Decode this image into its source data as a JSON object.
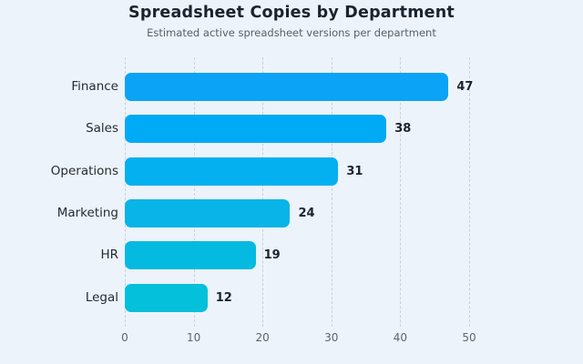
{
  "title": "Spreadsheet Copies by Department",
  "subtitle": "Estimated active spreadsheet versions per department",
  "colors": {
    "background": "#edf3fb",
    "grid": "#cad1dc",
    "title": "#1c232e",
    "subtitle": "#54616f",
    "category_label": "#262b33",
    "value_label": "#1d232c",
    "tick_label": "#5b6471"
  },
  "chart_data": {
    "type": "bar",
    "orientation": "horizontal",
    "title": "Spreadsheet Copies by Department",
    "subtitle": "Estimated active spreadsheet versions per department",
    "categories": [
      "Finance",
      "Sales",
      "Operations",
      "Marketing",
      "HR",
      "Legal"
    ],
    "values": [
      47,
      38,
      31,
      24,
      19,
      12
    ],
    "bar_colors": [
      "#0aa3f6",
      "#00aaf5",
      "#04b0ef",
      "#08b4e8",
      "#05bae1",
      "#04c0da"
    ],
    "xlabel": "",
    "ylabel": "",
    "x_ticks": [
      0,
      10,
      20,
      30,
      40,
      50
    ],
    "xlim": [
      0,
      56
    ],
    "grid": "vertical-dashed",
    "legend": "none",
    "value_labels": true
  }
}
